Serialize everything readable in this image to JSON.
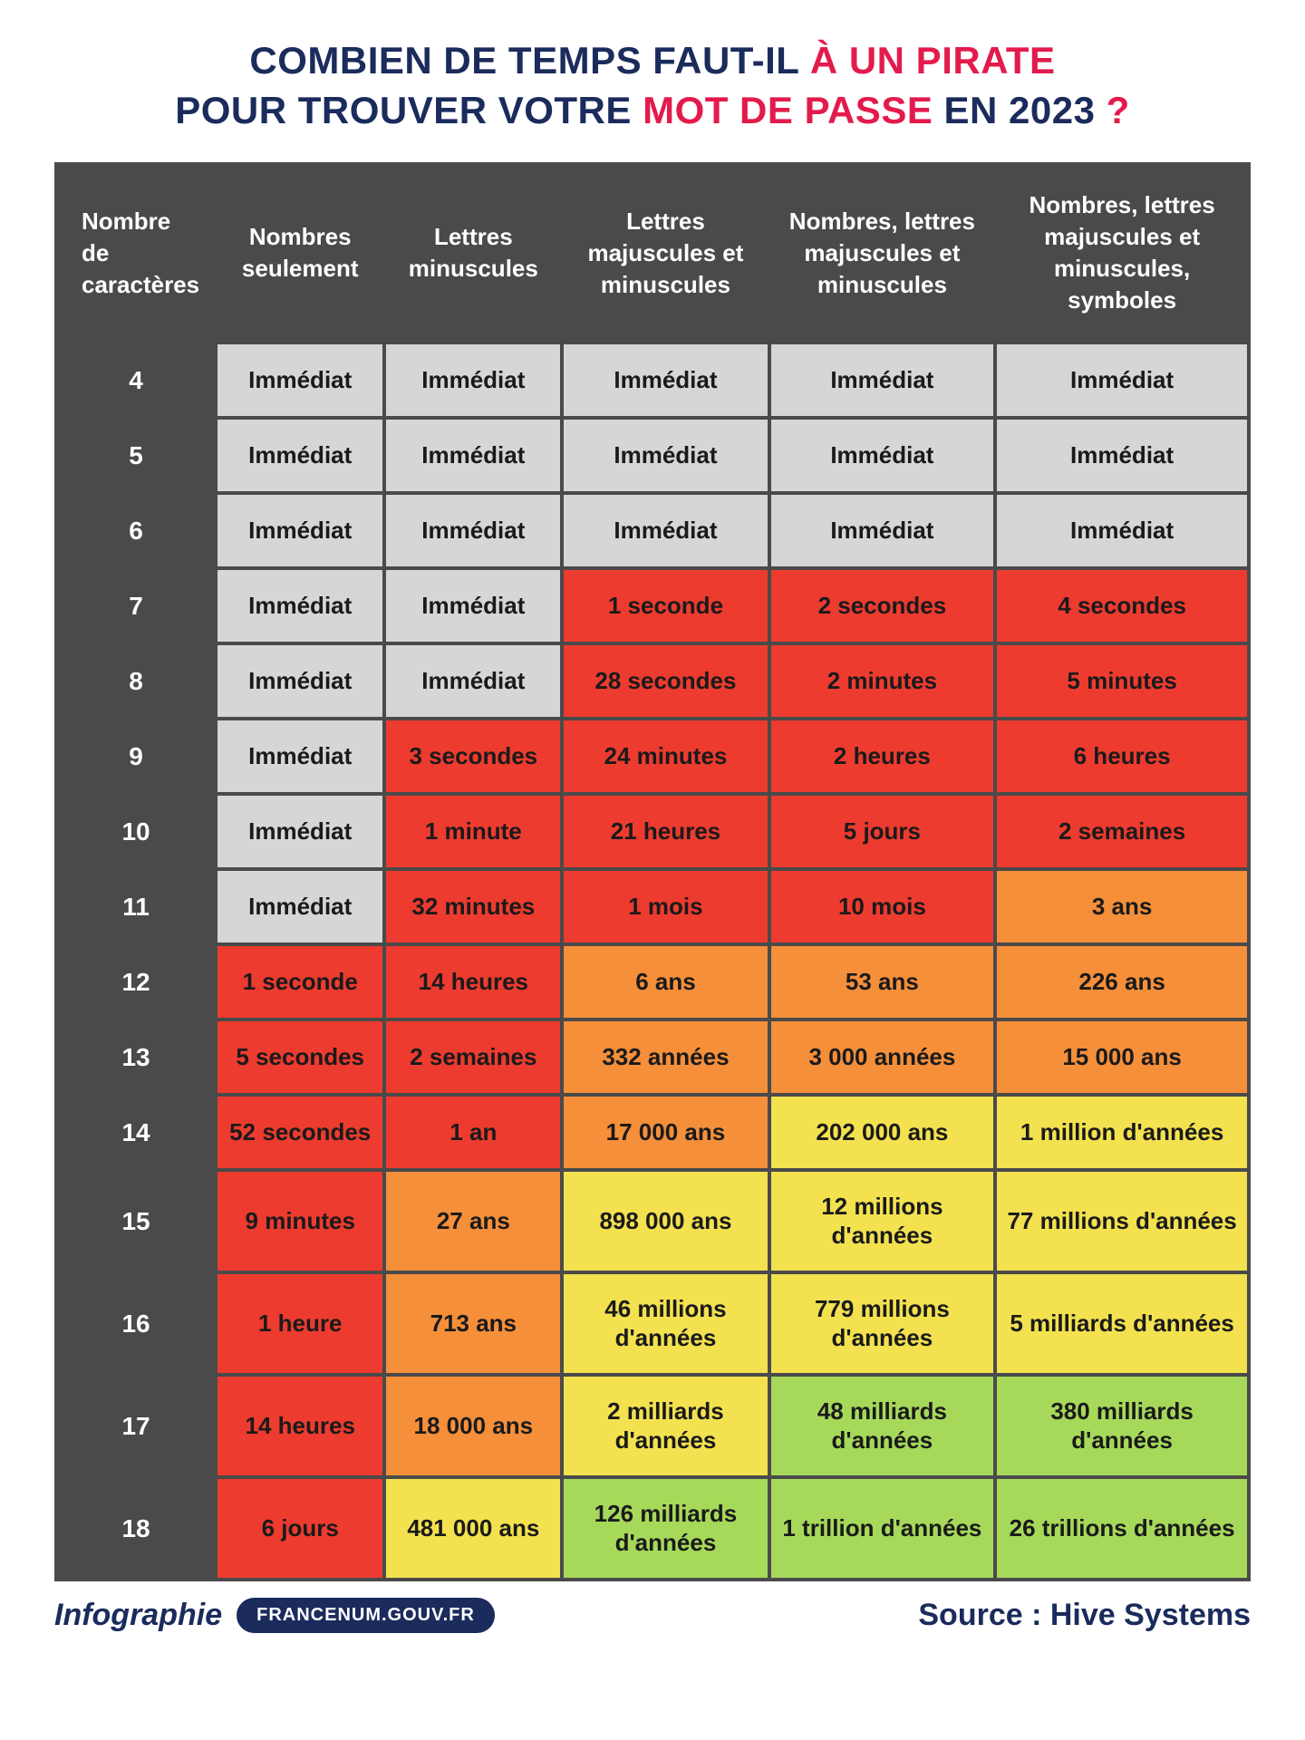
{
  "title": {
    "line1_pre": "COMBIEN DE TEMPS FAUT-IL ",
    "line1_accent": "À UN PIRATE",
    "line2_pre": "POUR TROUVER VOTRE ",
    "line2_accent": "MOT DE PASSE",
    "line2_post": " EN 2023 ",
    "line2_q": "?"
  },
  "table": {
    "columns": [
      "Nombre de caractères",
      "Nombres seulement",
      "Lettres minuscules",
      "Lettres majuscules et minuscules",
      "Nombres, lettres majuscules et minuscules",
      "Nombres, lettres majuscules et minuscules, symboles"
    ],
    "colors": {
      "header_bg": "#4a4a4a",
      "header_text": "#ffffff",
      "border_spacing": "4px",
      "grey": "#d6d6d6",
      "red": "#ed3b2f",
      "orange": "#f58f3a",
      "yellow": "#f3e14f",
      "green": "#a6d95a",
      "cell_text": "#1a1a1a"
    },
    "rows": [
      {
        "n": "4",
        "cells": [
          {
            "t": "Immédiat",
            "c": "grey"
          },
          {
            "t": "Immédiat",
            "c": "grey"
          },
          {
            "t": "Immédiat",
            "c": "grey"
          },
          {
            "t": "Immédiat",
            "c": "grey"
          },
          {
            "t": "Immédiat",
            "c": "grey"
          }
        ]
      },
      {
        "n": "5",
        "cells": [
          {
            "t": "Immédiat",
            "c": "grey"
          },
          {
            "t": "Immédiat",
            "c": "grey"
          },
          {
            "t": "Immédiat",
            "c": "grey"
          },
          {
            "t": "Immédiat",
            "c": "grey"
          },
          {
            "t": "Immédiat",
            "c": "grey"
          }
        ]
      },
      {
        "n": "6",
        "cells": [
          {
            "t": "Immédiat",
            "c": "grey"
          },
          {
            "t": "Immédiat",
            "c": "grey"
          },
          {
            "t": "Immédiat",
            "c": "grey"
          },
          {
            "t": "Immédiat",
            "c": "grey"
          },
          {
            "t": "Immédiat",
            "c": "grey"
          }
        ]
      },
      {
        "n": "7",
        "cells": [
          {
            "t": "Immédiat",
            "c": "grey"
          },
          {
            "t": "Immédiat",
            "c": "grey"
          },
          {
            "t": "1 seconde",
            "c": "red"
          },
          {
            "t": "2 secondes",
            "c": "red"
          },
          {
            "t": "4 secondes",
            "c": "red"
          }
        ]
      },
      {
        "n": "8",
        "cells": [
          {
            "t": "Immédiat",
            "c": "grey"
          },
          {
            "t": "Immédiat",
            "c": "grey"
          },
          {
            "t": "28 secondes",
            "c": "red"
          },
          {
            "t": "2 minutes",
            "c": "red"
          },
          {
            "t": "5 minutes",
            "c": "red"
          }
        ]
      },
      {
        "n": "9",
        "cells": [
          {
            "t": "Immédiat",
            "c": "grey"
          },
          {
            "t": "3 secondes",
            "c": "red"
          },
          {
            "t": "24 minutes",
            "c": "red"
          },
          {
            "t": "2 heures",
            "c": "red"
          },
          {
            "t": "6 heures",
            "c": "red"
          }
        ]
      },
      {
        "n": "10",
        "cells": [
          {
            "t": "Immédiat",
            "c": "grey"
          },
          {
            "t": "1 minute",
            "c": "red"
          },
          {
            "t": "21 heures",
            "c": "red"
          },
          {
            "t": "5 jours",
            "c": "red"
          },
          {
            "t": "2 semaines",
            "c": "red"
          }
        ]
      },
      {
        "n": "11",
        "cells": [
          {
            "t": "Immédiat",
            "c": "grey"
          },
          {
            "t": "32 minutes",
            "c": "red"
          },
          {
            "t": "1 mois",
            "c": "red"
          },
          {
            "t": "10 mois",
            "c": "red"
          },
          {
            "t": "3 ans",
            "c": "orange"
          }
        ]
      },
      {
        "n": "12",
        "cells": [
          {
            "t": "1 seconde",
            "c": "red"
          },
          {
            "t": "14 heures",
            "c": "red"
          },
          {
            "t": "6 ans",
            "c": "orange"
          },
          {
            "t": "53 ans",
            "c": "orange"
          },
          {
            "t": "226 ans",
            "c": "orange"
          }
        ]
      },
      {
        "n": "13",
        "cells": [
          {
            "t": "5 secondes",
            "c": "red"
          },
          {
            "t": "2 semaines",
            "c": "red"
          },
          {
            "t": "332 années",
            "c": "orange"
          },
          {
            "t": "3 000 années",
            "c": "orange"
          },
          {
            "t": "15 000 ans",
            "c": "orange"
          }
        ]
      },
      {
        "n": "14",
        "cells": [
          {
            "t": "52 secondes",
            "c": "red"
          },
          {
            "t": "1 an",
            "c": "red"
          },
          {
            "t": "17 000 ans",
            "c": "orange"
          },
          {
            "t": "202 000 ans",
            "c": "yellow"
          },
          {
            "t": "1 million d'années",
            "c": "yellow"
          }
        ]
      },
      {
        "n": "15",
        "cells": [
          {
            "t": "9 minutes",
            "c": "red"
          },
          {
            "t": "27 ans",
            "c": "orange"
          },
          {
            "t": "898 000 ans",
            "c": "yellow"
          },
          {
            "t": "12 millions d'années",
            "c": "yellow"
          },
          {
            "t": "77 millions d'années",
            "c": "yellow"
          }
        ]
      },
      {
        "n": "16",
        "cells": [
          {
            "t": "1 heure",
            "c": "red"
          },
          {
            "t": "713 ans",
            "c": "orange"
          },
          {
            "t": "46 millions d'années",
            "c": "yellow"
          },
          {
            "t": "779 millions d'années",
            "c": "yellow"
          },
          {
            "t": "5 milliards d'années",
            "c": "yellow"
          }
        ]
      },
      {
        "n": "17",
        "cells": [
          {
            "t": "14 heures",
            "c": "red"
          },
          {
            "t": "18 000 ans",
            "c": "orange"
          },
          {
            "t": "2 milliards d'années",
            "c": "yellow"
          },
          {
            "t": "48 milliards d'années",
            "c": "green"
          },
          {
            "t": "380 milliards d'années",
            "c": "green"
          }
        ]
      },
      {
        "n": "18",
        "cells": [
          {
            "t": "6 jours",
            "c": "red"
          },
          {
            "t": "481 000 ans",
            "c": "yellow"
          },
          {
            "t": "126 milliards d'années",
            "c": "green"
          },
          {
            "t": "1 trillion d'années",
            "c": "green"
          },
          {
            "t": "26 trillions d'années",
            "c": "green"
          }
        ]
      }
    ]
  },
  "footer": {
    "label": "Infographie",
    "pill": "FRANCENUM.GOUV.FR",
    "source": "Source : Hive Systems"
  }
}
